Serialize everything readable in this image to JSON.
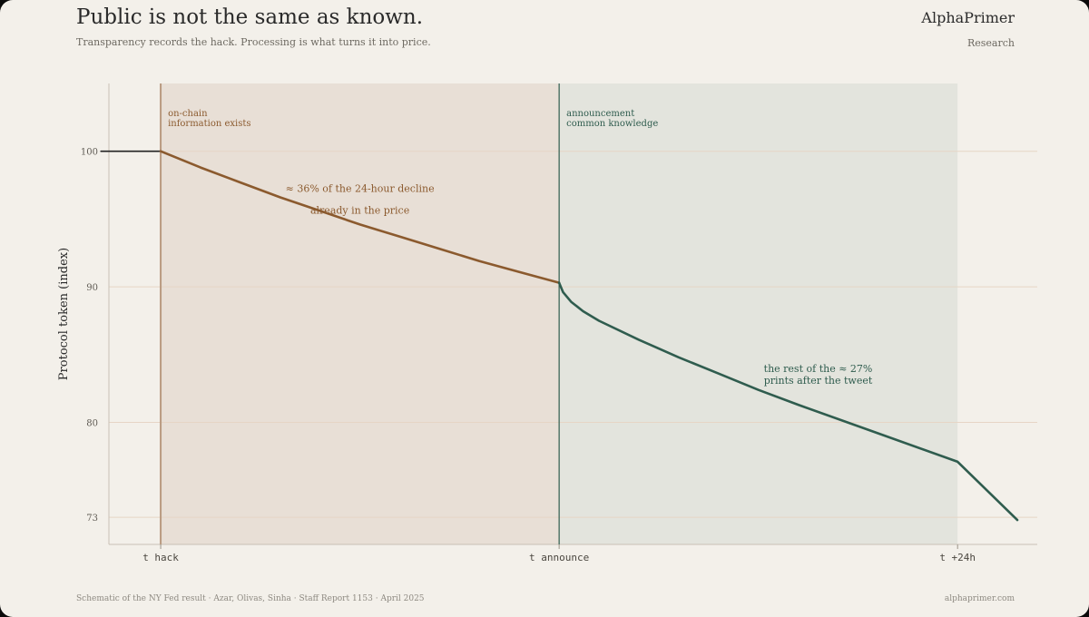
{
  "header": {
    "title": "Public is not the same as known.",
    "subtitle": "Transparency records the hack. Processing is what turns it into price.",
    "brand": "AlphaPrimer",
    "brand_sub": "Research"
  },
  "footer": {
    "left": "Schematic of the NY Fed result · Azar, Olivas, Sinha · Staff Report 1153 · April 2025",
    "right": "alphaprimer.com"
  },
  "colors": {
    "background": "#f3f0ea",
    "pre_segment": "#8b5a2e",
    "post_segment": "#2f5c4e",
    "baseline": "#222222",
    "pre_region": "#e8dfd6",
    "post_region": "#e3e4dd",
    "grid": "#e6d5c5"
  },
  "chart_data": {
    "type": "line",
    "title": "Public is not the same as known.",
    "xlabel": "",
    "ylabel": "Protocol token (index)",
    "x_ticks": [
      "t_hack",
      "t_announce",
      "t_+24h"
    ],
    "x_domain": [
      -0.13,
      2.2
    ],
    "y_ticks": [
      73,
      80,
      90,
      100
    ],
    "ylim": [
      71,
      105
    ],
    "grid": "horizontal",
    "regions": [
      {
        "from": 0,
        "to": 1,
        "label_lines": [
          "on-chain",
          "information exists"
        ]
      },
      {
        "from": 1,
        "to": 2,
        "label_lines": [
          "announcement",
          "common knowledge"
        ]
      }
    ],
    "series": [
      {
        "role": "pre-hack",
        "x": [
          -0.15,
          0
        ],
        "y": [
          100,
          100
        ]
      },
      {
        "role": "on-chain period",
        "x": [
          0,
          0.1,
          0.2,
          0.3,
          0.4,
          0.5,
          0.6,
          0.7,
          0.8,
          0.9,
          1.0
        ],
        "y": [
          100,
          98.8,
          97.7,
          96.6,
          95.6,
          94.6,
          93.7,
          92.8,
          91.9,
          91.1,
          90.3
        ]
      },
      {
        "role": "post-announcement",
        "x": [
          1.0,
          1.01,
          1.03,
          1.06,
          1.1,
          1.2,
          1.3,
          1.4,
          1.5,
          1.6,
          1.8,
          2.0,
          2.15
        ],
        "y": [
          90.3,
          89.6,
          88.9,
          88.2,
          87.5,
          86.1,
          84.8,
          83.6,
          82.4,
          81.3,
          79.2,
          77.1,
          72.8
        ]
      }
    ],
    "annotations": [
      {
        "lines": [
          "≈ 36% of the 24-hour decline",
          "already in the price"
        ],
        "x": 0.5,
        "y": 96.2
      },
      {
        "lines": [
          "the rest of the ≈ 27%",
          "prints after the tweet"
        ],
        "x": 1.65,
        "y": 83.7
      }
    ]
  }
}
